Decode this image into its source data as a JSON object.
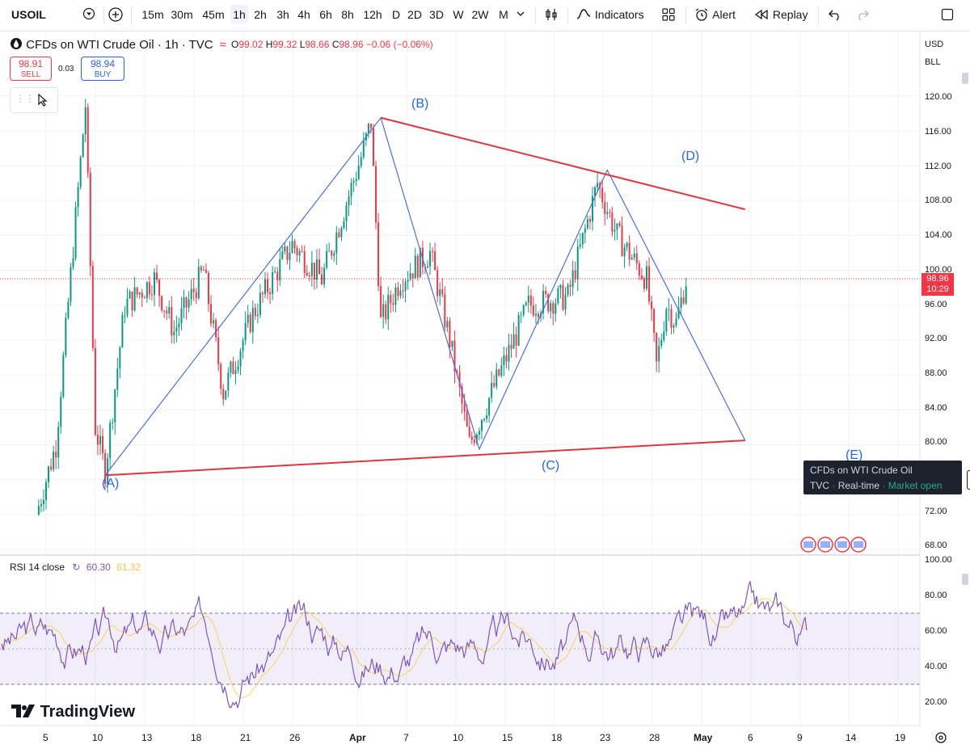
{
  "toolbar": {
    "symbol": "USOIL",
    "intervals": [
      "15m",
      "30m",
      "45m",
      "1h",
      "2h",
      "3h",
      "4h",
      "6h",
      "8h",
      "12h",
      "D",
      "2D",
      "3D",
      "W",
      "2W",
      "M"
    ],
    "active_interval": "1h",
    "indicators_label": "Indicators",
    "alert_label": "Alert",
    "replay_label": "Replay"
  },
  "legend": {
    "title": "CFDs on WTI Crude Oil · 1h · TVC",
    "o_label": "O",
    "o": "99.02",
    "h_label": "H",
    "h": "99.32",
    "l_label": "L",
    "l": "98.66",
    "c_label": "C",
    "c": "98.96",
    "change": "−0.06 (−0.06%)",
    "sell_price": "98.91",
    "sell_label": "SELL",
    "spread": "0.03",
    "buy_price": "98.94",
    "buy_label": "BUY"
  },
  "price_axis": {
    "currency": "USD",
    "unit": "BLL",
    "ticks": [
      "120.00",
      "116.00",
      "112.00",
      "108.00",
      "104.00",
      "100.00",
      "96.00",
      "92.00",
      "88.00",
      "84.00",
      "80.00",
      "72.00",
      "68.00"
    ],
    "current_price": "98.96",
    "countdown": "10:29"
  },
  "info_box": {
    "line1": "CFDs on WTI Crude Oil",
    "source": "TVC",
    "realtime": "Real-time",
    "status": "Market open"
  },
  "rsi": {
    "label": "RSI 14 close",
    "value": "60.30",
    "ma_value": "61.32",
    "ticks": [
      "100.00",
      "80.00",
      "60.00",
      "40.00",
      "20.00"
    ]
  },
  "time_axis": [
    "5",
    "10",
    "13",
    "18",
    "21",
    "26",
    "Apr",
    "7",
    "10",
    "15",
    "18",
    "23",
    "28",
    "May",
    "6",
    "9",
    "14",
    "19"
  ],
  "waves": [
    "(A)",
    "(B)",
    "(C)",
    "(D)",
    "(E)"
  ],
  "branding": "TradingView",
  "colors": {
    "up": "#089981",
    "down": "#f23645",
    "trend": "#e0343f",
    "wave": "#4a6fe3",
    "rsi": "#7e57c2",
    "rsi_ma": "#f7d35a",
    "blue": "#2962ff"
  },
  "chart_data": {
    "type": "candlestick",
    "title": "CFDs on WTI Crude Oil · 1h · TVC",
    "series_points": [
      {
        "x": "Mar 4",
        "y": 72
      },
      {
        "x": "Mar 6",
        "y": 80
      },
      {
        "x": "Mar 9",
        "y": 119
      },
      {
        "x": "Mar 10",
        "y": 82
      },
      {
        "x": "Mar 11",
        "y": 77
      },
      {
        "x": "Mar 13",
        "y": 96
      },
      {
        "x": "Mar 16",
        "y": 99
      },
      {
        "x": "Mar 18",
        "y": 93
      },
      {
        "x": "Mar 21",
        "y": 100
      },
      {
        "x": "Mar 23",
        "y": 86
      },
      {
        "x": "Mar 26",
        "y": 95
      },
      {
        "x": "Mar 30",
        "y": 103
      },
      {
        "x": "Apr 2",
        "y": 99
      },
      {
        "x": "Apr 6",
        "y": 113
      },
      {
        "x": "Apr 7",
        "y": 117
      },
      {
        "x": "Apr 8",
        "y": 94
      },
      {
        "x": "Apr 10",
        "y": 99
      },
      {
        "x": "Apr 13",
        "y": 102
      },
      {
        "x": "Apr 15",
        "y": 92
      },
      {
        "x": "Apr 17",
        "y": 80
      },
      {
        "x": "Apr 20",
        "y": 88
      },
      {
        "x": "Apr 23",
        "y": 96
      },
      {
        "x": "Apr 27",
        "y": 97
      },
      {
        "x": "Apr 30",
        "y": 110
      },
      {
        "x": "May 2",
        "y": 104
      },
      {
        "x": "May 5",
        "y": 99
      },
      {
        "x": "May 6",
        "y": 89
      },
      {
        "x": "May 7",
        "y": 96
      },
      {
        "x": "May 8",
        "y": 94
      },
      {
        "x": "May 9",
        "y": 98.96
      }
    ],
    "ylim": [
      68,
      121
    ],
    "wave_points": [
      {
        "label": "(A)",
        "x": "Mar 11",
        "y": 76.5
      },
      {
        "label": "(B)",
        "x": "Apr 8",
        "y": 117.5
      },
      {
        "label": "(C)",
        "x": "Apr 18",
        "y": 79.5
      },
      {
        "label": "(D)",
        "x": "May 1",
        "y": 111.5
      },
      {
        "label": "(E)",
        "x": "May 15",
        "y": 80.5
      }
    ],
    "upper_trendline": [
      {
        "x": "Apr 8",
        "y": 117.5
      },
      {
        "x": "May 15",
        "y": 107
      }
    ],
    "lower_trendline": [
      {
        "x": "Mar 11",
        "y": 76.5
      },
      {
        "x": "May 15",
        "y": 80.5
      }
    ],
    "rsi_ylim": [
      10,
      100
    ],
    "rsi_levels": [
      70,
      50,
      30
    ]
  }
}
